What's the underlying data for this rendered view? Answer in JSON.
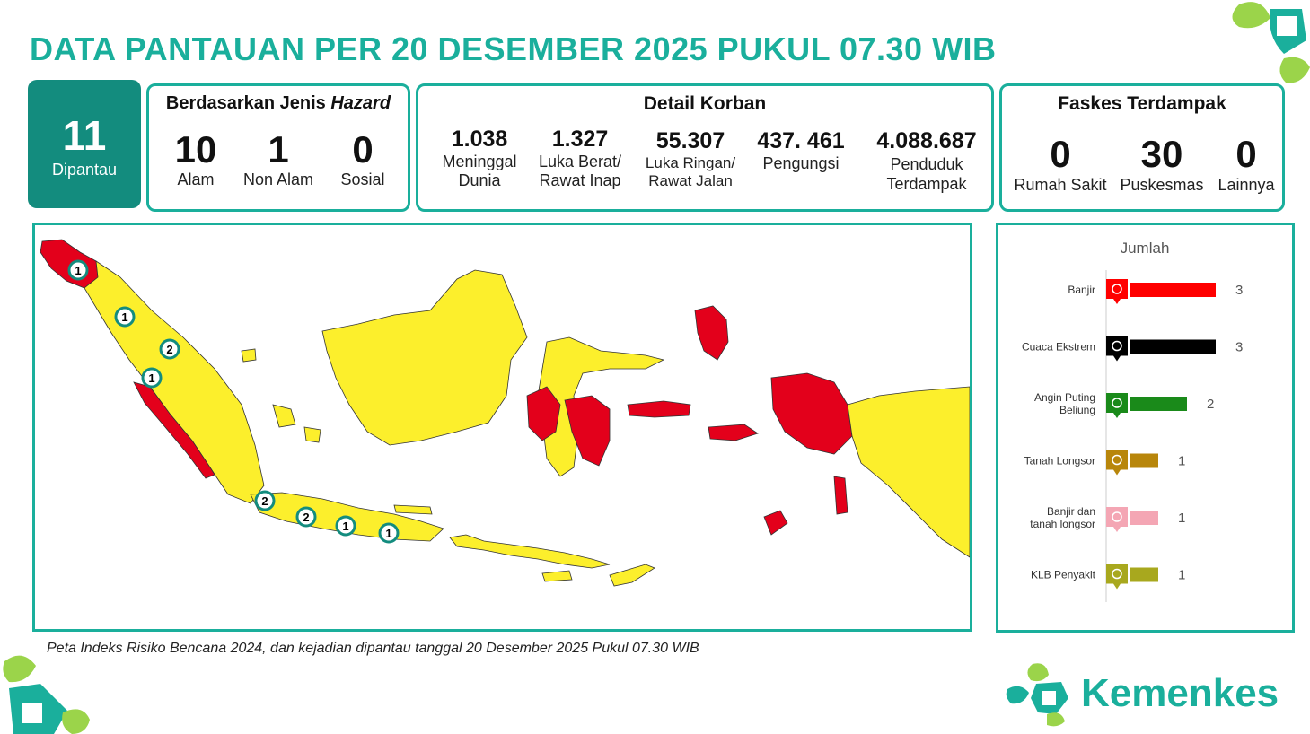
{
  "title": "DATA PANTAUAN PER 20 DESEMBER 2025 PUKUL 07.30 WIB",
  "monitored": {
    "value": "11",
    "label": "Dipantau"
  },
  "hazard": {
    "title_prefix": "Berdasarkan Jenis ",
    "title_italic": "Hazard",
    "items": [
      {
        "value": "10",
        "label": "Alam"
      },
      {
        "value": "1",
        "label": "Non Alam"
      },
      {
        "value": "0",
        "label": "Sosial"
      }
    ]
  },
  "victims": {
    "title": "Detail Korban",
    "items": [
      {
        "value": "1.038",
        "label1": "Meninggal",
        "label2": "Dunia"
      },
      {
        "value": "1.327",
        "label1": "Luka Berat/",
        "label2": "Rawat Inap"
      },
      {
        "value": "55.307",
        "label1": "Luka Ringan/",
        "label2": "Rawat Jalan"
      },
      {
        "value": "437. 461",
        "label1": "Pengungsi",
        "label2": ""
      },
      {
        "value": "4.088.687",
        "label1": "Penduduk",
        "label2": "Terdampak"
      }
    ]
  },
  "facilities": {
    "title": "Faskes Terdampak",
    "items": [
      {
        "value": "0",
        "label": "Rumah Sakit"
      },
      {
        "value": "30",
        "label": "Puskesmas"
      },
      {
        "value": "0",
        "label": "Lainnya"
      }
    ]
  },
  "map": {
    "markers": [
      "1",
      "1",
      "2",
      "1",
      "2",
      "2",
      "1",
      "1"
    ],
    "colors": {
      "high": "#e3001b",
      "medium": "#fcef2c",
      "border": "#333333"
    }
  },
  "chart_data": {
    "type": "bar",
    "orientation": "horizontal",
    "title": "Jumlah",
    "categories": [
      "Banjir",
      "Cuaca Ekstrem",
      "Angin Puting Beliung",
      "Tanah Longsor",
      "Banjir dan tanah longsor",
      "KLB Penyakit"
    ],
    "values": [
      3,
      3,
      2,
      1,
      1,
      1
    ],
    "colors": [
      "#ff0000",
      "#000000",
      "#1a8a1a",
      "#b8860b",
      "#f4a6b4",
      "#a8a81e"
    ],
    "icons": [
      "flood-icon",
      "weather-icon",
      "tornado-icon",
      "landslide-icon",
      "flood-landslide-icon",
      "disease-icon"
    ],
    "xlim": [
      0,
      3
    ],
    "grid": false,
    "legend": "none"
  },
  "footnote": "Peta Indeks Risiko Bencana 2024, dan kejadian dipantau tanggal 20 Desember 2025 Pukul 07.30 WIB",
  "brand": "Kemenkes",
  "accent": "#1aaf9c"
}
